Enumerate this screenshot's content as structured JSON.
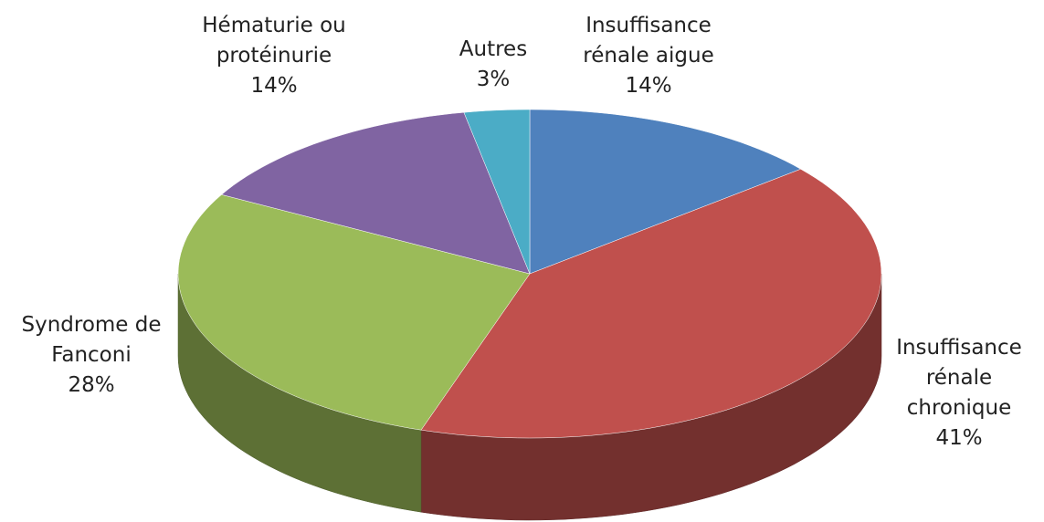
{
  "chart_data": {
    "type": "pie",
    "categories": [
      "Insuffisance rénale aigue",
      "Insuffisance rénale chronique",
      "Syndrome de Fanconi",
      "Hématurie ou protéinurie",
      "Autres"
    ],
    "values": [
      14,
      41,
      28,
      14,
      3
    ],
    "value_labels": [
      "14%",
      "41%",
      "28%",
      "14%",
      "3%"
    ],
    "colors": [
      "#4f81bd",
      "#c0504d",
      "#9bbb59",
      "#8064a2",
      "#4bacc6"
    ]
  }
}
